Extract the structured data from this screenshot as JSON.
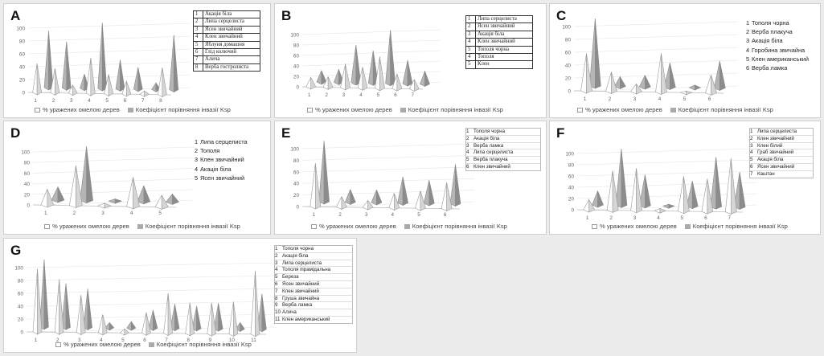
{
  "colors": {
    "series1_fill": "#ffffff",
    "series1_stroke": "#9a9a9a",
    "series2_fill": "#b5b5b5",
    "series2_stroke": "#8a8a8a",
    "axis": "#bbbbbb",
    "grid": "#e4e4e4",
    "tick": "#666666"
  },
  "series_labels": [
    "% уражених омелою дерев",
    "Коефіцієнт порівняння інвазії Ksp"
  ],
  "chart_data": [
    {
      "id": "A",
      "type": "bar",
      "style": "3d-cone",
      "categories": [
        "1",
        "2",
        "3",
        "4",
        "5",
        "6",
        "7",
        "8"
      ],
      "ylim": [
        0,
        100
      ],
      "yticks": [
        0,
        20,
        40,
        60,
        80,
        100
      ],
      "series": [
        {
          "name": "% уражених омелою дерев",
          "values": [
            45,
            38,
            12,
            55,
            30,
            20,
            5,
            42
          ]
        },
        {
          "name": "Коефіцієнт порівняння інвазії Ksp",
          "values": [
            88,
            72,
            22,
            102,
            45,
            34,
            10,
            85
          ]
        }
      ],
      "species": [
        "Акація біла",
        "Липа серцелиста",
        "Ясен звичайний",
        "Клен звичайний",
        "Яблуня домашня",
        "Глід колючий",
        "Алича",
        "Верба гостролиста"
      ],
      "legend_style": "boxed"
    },
    {
      "id": "B",
      "type": "bar",
      "style": "3d-cone",
      "categories": [
        "1",
        "2",
        "3",
        "4",
        "5",
        "6",
        "7"
      ],
      "ylim": [
        0,
        100
      ],
      "yticks": [
        0,
        20,
        40,
        60,
        80,
        100
      ],
      "series": [
        {
          "name": "% уражених омелою дерев",
          "values": [
            18,
            20,
            45,
            40,
            60,
            28,
            18
          ]
        },
        {
          "name": "Коефіцієнт порівняння інвазії Ksp",
          "values": [
            22,
            25,
            72,
            62,
            102,
            45,
            25
          ]
        }
      ],
      "species": [
        "Липа серцелиста",
        "Ясен звичайний",
        "Акація біла",
        "Клен звичайний",
        "Тополя чорна",
        "Тополя",
        "Клен"
      ],
      "species_numbers": [
        "1",
        "2",
        "3",
        "4",
        "5",
        "4",
        "5"
      ],
      "legend_style": "boxed"
    },
    {
      "id": "C",
      "type": "bar",
      "style": "3d-cone",
      "categories": [
        "1",
        "2",
        "3",
        "4",
        "5",
        "6"
      ],
      "ylim": [
        0,
        100
      ],
      "yticks": [
        0,
        20,
        40,
        60,
        80,
        100
      ],
      "series": [
        {
          "name": "% уражених омелою дерев",
          "values": [
            58,
            30,
            12,
            60,
            2,
            28
          ]
        },
        {
          "name": "Коефіцієнт порівняння інвазії Ksp",
          "values": [
            105,
            15,
            18,
            38,
            4,
            42
          ]
        }
      ],
      "species": [
        "Тополя чорна",
        "Верба плакуча",
        "Акація біла",
        "Горобина звичайна",
        "Клен американський",
        "Верба ламка"
      ],
      "legend_style": "plain"
    },
    {
      "id": "D",
      "type": "bar",
      "style": "3d-cone",
      "categories": [
        "1",
        "2",
        "3",
        "4",
        "5"
      ],
      "ylim": [
        0,
        100
      ],
      "yticks": [
        0,
        20,
        40,
        60,
        80,
        100
      ],
      "series": [
        {
          "name": "% уражених омелою дерев",
          "values": [
            30,
            75,
            5,
            55,
            22
          ]
        },
        {
          "name": "Коефіцієнт порівняння інвазії Ksp",
          "values": [
            25,
            102,
            4,
            30,
            15
          ]
        }
      ],
      "species": [
        "Липа серцелиста",
        "Тополя",
        "Клен звичайний",
        "Акація біла",
        "Ясен звичайний"
      ],
      "legend_style": "plain"
    },
    {
      "id": "E",
      "type": "bar",
      "style": "3d-cone",
      "categories": [
        "1",
        "2",
        "3",
        "4",
        "5",
        "6"
      ],
      "ylim": [
        0,
        100
      ],
      "yticks": [
        0,
        20,
        40,
        60,
        80,
        100
      ],
      "series": [
        {
          "name": "% уражених омелою дерев",
          "values": [
            75,
            18,
            12,
            25,
            30,
            45
          ]
        },
        {
          "name": "Коефіцієнт порівняння інвазії Ksp",
          "values": [
            105,
            22,
            22,
            45,
            40,
            68
          ]
        }
      ],
      "species": [
        "Тополя чорна",
        "Акація біла",
        "Верба ламка",
        "Липа серцелиста",
        "Верба плакуча",
        "Клен звичайний"
      ],
      "legend_style": "thin"
    },
    {
      "id": "F",
      "type": "bar",
      "style": "3d-cone",
      "categories": [
        "1",
        "2",
        "3",
        "4",
        "5",
        "6",
        "7"
      ],
      "ylim": [
        0,
        100
      ],
      "yticks": [
        0,
        20,
        40,
        60,
        80,
        100
      ],
      "series": [
        {
          "name": "% уражених омелою дерев",
          "values": [
            18,
            70,
            75,
            4,
            62,
            58,
            95
          ]
        },
        {
          "name": "Коефіцієнт порівняння інвазії Ksp",
          "values": [
            25,
            100,
            55,
            3,
            45,
            88,
            62
          ]
        }
      ],
      "species": [
        "Липа серцелиста",
        "Клен звичайний",
        "Клен білий",
        "Граб звичайний",
        "Акація біла",
        "Ясен звичайний",
        "Каштан"
      ],
      "legend_style": "thin"
    },
    {
      "id": "G",
      "type": "bar",
      "style": "3d-cone",
      "categories": [
        "1",
        "2",
        "3",
        "4",
        "5",
        "6",
        "7",
        "8",
        "9",
        "10",
        "11"
      ],
      "ylim": [
        0,
        100
      ],
      "yticks": [
        0,
        20,
        40,
        60,
        80,
        100
      ],
      "series": [
        {
          "name": "% уражених омелою дерев",
          "values": [
            98,
            82,
            58,
            28,
            6,
            32,
            62,
            48,
            48,
            50,
            98
          ]
        },
        {
          "name": "Коефіцієнт порівняння інвазії Ksp",
          "values": [
            105,
            68,
            60,
            8,
            10,
            28,
            38,
            35,
            40,
            10,
            55
          ]
        }
      ],
      "species": [
        "Тополя чорна",
        "Акація біла",
        "Липа серцелиста",
        "Тополя пірамідальна",
        "Береза",
        "Ясен звичайний",
        "Клен звичайний",
        "Груша звичайна",
        "Верба ламка",
        "Алича",
        "Клен американський"
      ],
      "legend_style": "thin"
    }
  ]
}
